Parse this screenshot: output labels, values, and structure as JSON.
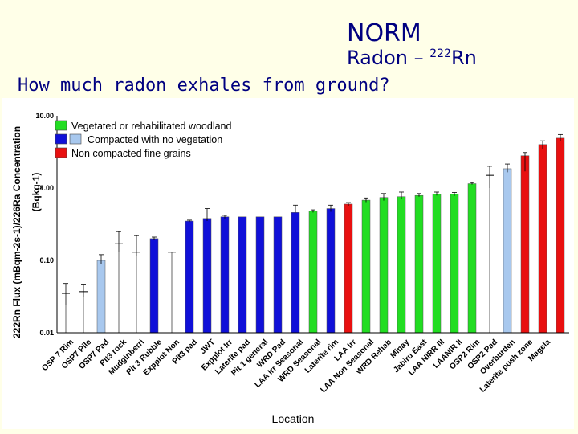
{
  "slide": {
    "title": "NORM",
    "subtitle_text": "Radon – ",
    "subtitle_isotope": "222",
    "subtitle_element": "Rn",
    "question": "How much radon exhales from ground?"
  },
  "colors": {
    "vegetated": "#22dd22",
    "compacted_dark": "#1010d8",
    "compacted_light": "#a8c8ee",
    "fine_grains": "#e81010",
    "slide_text": "#000080",
    "background": "#ffffe8"
  },
  "chart_data": {
    "type": "bar",
    "ylabel_line1": "222Rn Flux (mBqm-2s-1)/226Ra Concentration",
    "ylabel_line2": "(Bqkg-1)",
    "xlabel": "Location",
    "yscale": "log",
    "ylim": [
      0.01,
      10
    ],
    "yticks": [
      "10.00",
      "1.00",
      "0.10",
      "0.01"
    ],
    "legend": [
      {
        "label": "Vegetated or rehabilitated woodland",
        "swatches": [
          "vegetated"
        ]
      },
      {
        "label": "Compacted with no vegetation",
        "swatches": [
          "compacted_dark",
          "compacted_light"
        ]
      },
      {
        "label": "Non compacted fine grains",
        "swatches": [
          "fine_grains"
        ]
      }
    ],
    "bars": [
      {
        "label": "OSP 7 Rim",
        "value": 0.035,
        "err": [
          0.024,
          0.048
        ],
        "group": "none"
      },
      {
        "label": "OSP7 Pile",
        "value": 0.037,
        "err": [
          0.031,
          0.047
        ],
        "group": "none"
      },
      {
        "label": "OSP7 Pad",
        "value": 0.1,
        "err": [
          0.089,
          0.12
        ],
        "group": "compacted_light"
      },
      {
        "label": "Pit3 rock",
        "value": 0.17,
        "err": [
          0.13,
          0.25
        ],
        "group": "none"
      },
      {
        "label": "Mudginberri",
        "value": 0.13,
        "err": [
          0.115,
          0.22
        ],
        "group": "none"
      },
      {
        "label": "Pit 3 Rubble",
        "value": 0.2,
        "err": [
          0.19,
          0.21
        ],
        "group": "compacted_dark"
      },
      {
        "label": "Expplot Non",
        "value": 0.13,
        "err": [
          0.13,
          0.13
        ],
        "group": "none"
      },
      {
        "label": "Pit3 pad",
        "value": 0.35,
        "err": [
          0.34,
          0.36
        ],
        "group": "compacted_dark"
      },
      {
        "label": "JWT",
        "value": 0.38,
        "err": [
          0.35,
          0.52
        ],
        "group": "compacted_dark"
      },
      {
        "label": "Expplot Irr",
        "value": 0.4,
        "err": [
          0.38,
          0.42
        ],
        "group": "compacted_dark"
      },
      {
        "label": "Laterite pad",
        "value": 0.4,
        "err": [
          0.4,
          0.4
        ],
        "group": "compacted_dark"
      },
      {
        "label": "Pit 1 general",
        "value": 0.4,
        "err": [
          0.4,
          0.4
        ],
        "group": "compacted_dark"
      },
      {
        "label": "WRD Pad",
        "value": 0.4,
        "err": [
          0.4,
          0.4
        ],
        "group": "compacted_dark"
      },
      {
        "label": "LAA Irr Seasonal",
        "value": 0.46,
        "err": [
          0.46,
          0.58
        ],
        "group": "compacted_dark"
      },
      {
        "label": "WRD Seasonal",
        "value": 0.48,
        "err": [
          0.46,
          0.5
        ],
        "group": "vegetated"
      },
      {
        "label": "Laterite rim",
        "value": 0.52,
        "err": [
          0.47,
          0.58
        ],
        "group": "compacted_dark"
      },
      {
        "label": "LAA Irr",
        "value": 0.6,
        "err": [
          0.57,
          0.63
        ],
        "group": "fine_grains"
      },
      {
        "label": "LAA Non Seasonal",
        "value": 0.68,
        "err": [
          0.64,
          0.73
        ],
        "group": "vegetated"
      },
      {
        "label": "WRD Rehab",
        "value": 0.74,
        "err": [
          0.67,
          0.84
        ],
        "group": "vegetated"
      },
      {
        "label": "Minay",
        "value": 0.76,
        "err": [
          0.7,
          0.88
        ],
        "group": "vegetated"
      },
      {
        "label": "Jabiru East",
        "value": 0.79,
        "err": [
          0.76,
          0.84
        ],
        "group": "vegetated"
      },
      {
        "label": "LAA NIRR III",
        "value": 0.83,
        "err": [
          0.79,
          0.88
        ],
        "group": "vegetated"
      },
      {
        "label": "LAANIR II",
        "value": 0.82,
        "err": [
          0.78,
          0.87
        ],
        "group": "vegetated"
      },
      {
        "label": "OSP2 Rim",
        "value": 1.15,
        "err": [
          1.12,
          1.19
        ],
        "group": "vegetated"
      },
      {
        "label": "OSP2 Pad",
        "value": 1.5,
        "err": [
          1.0,
          2.0
        ],
        "group": "none"
      },
      {
        "label": "Overburden",
        "value": 1.85,
        "err": [
          1.65,
          2.15
        ],
        "group": "compacted_light"
      },
      {
        "label": "Laterite push zone",
        "value": 2.8,
        "err": [
          1.7,
          3.1
        ],
        "group": "fine_grains"
      },
      {
        "label": "Magela",
        "value": 4.0,
        "err": [
          3.5,
          4.5
        ],
        "group": "fine_grains"
      },
      {
        "label": "",
        "value": 4.9,
        "err": [
          4.5,
          5.5
        ],
        "group": "fine_grains"
      }
    ]
  }
}
